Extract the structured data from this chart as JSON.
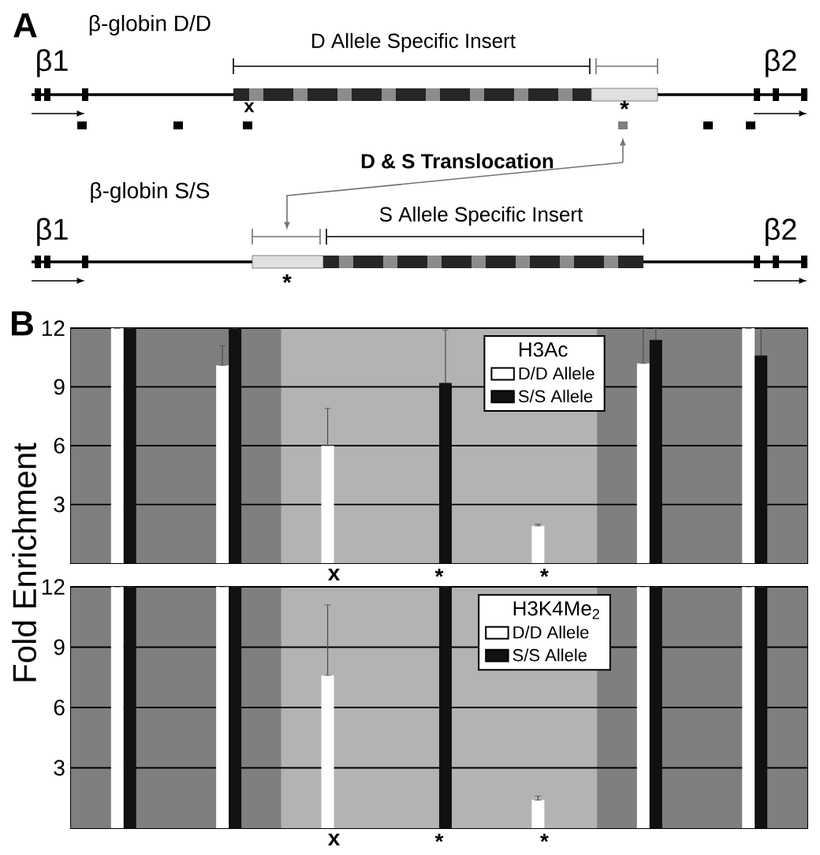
{
  "chart_data": [
    {
      "type": "other",
      "annotations": [
        "A",
        "β-globin D/D",
        "β1",
        "D Allele Specific Insert",
        "x",
        "*",
        "β2",
        "D & S Translocation",
        "β-globin S/S",
        "β1",
        "S Allele Specific Insert",
        "*",
        "β2"
      ]
    },
    {
      "type": "bar",
      "categories": [
        null,
        null,
        "x",
        "*",
        "*",
        null,
        null
      ],
      "ylabel": "Fold Enrichment",
      "legend_title": "H3Ac",
      "annotations": [
        "B"
      ],
      "ylim": [
        0,
        12
      ],
      "yticks": [
        3,
        6,
        9,
        12
      ],
      "grid": "y",
      "legend": "top",
      "series": [
        {
          "name": "D/D Allele",
          "color": "#ffffff",
          "values": [
            12,
            10.1,
            6.0,
            null,
            1.9,
            10.2,
            12
          ],
          "errors": [
            null,
            [
              10.1,
              11.1
            ],
            [
              6.0,
              7.9
            ],
            null,
            [
              1.9,
              2.0
            ],
            [
              10.2,
              12
            ],
            null
          ]
        },
        {
          "name": "S/S Allele",
          "color": "#111111",
          "values": [
            12,
            12,
            null,
            9.2,
            null,
            11.4,
            10.6
          ],
          "errors": [
            null,
            null,
            null,
            [
              9.2,
              11.9
            ],
            null,
            [
              11.4,
              12
            ],
            [
              10.6,
              12
            ]
          ]
        }
      ]
    },
    {
      "type": "bar",
      "categories": [
        null,
        null,
        "x",
        "*",
        "*",
        null,
        null
      ],
      "legend_title": "H3K4Me$_{2}$",
      "ylim": [
        0,
        12
      ],
      "yticks": [
        3,
        6,
        9,
        12
      ],
      "grid": "y",
      "legend": "top",
      "series": [
        {
          "name": "D/D Allele",
          "color": "#ffffff",
          "values": [
            12,
            12,
            7.6,
            null,
            1.4,
            12,
            12
          ],
          "errors": [
            null,
            null,
            [
              7.6,
              11.1
            ],
            null,
            [
              1.4,
              1.6
            ],
            null,
            null
          ]
        },
        {
          "name": "S/S Allele",
          "color": "#111111",
          "values": [
            12,
            12,
            null,
            12,
            null,
            12,
            12
          ]
        }
      ]
    }
  ]
}
